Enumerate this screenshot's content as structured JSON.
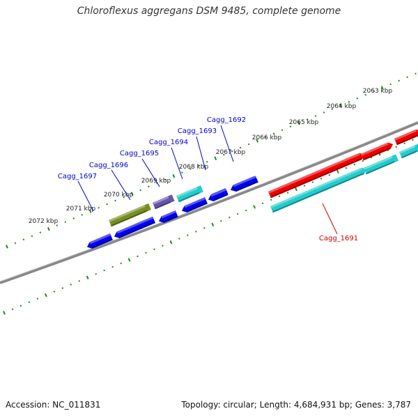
{
  "title": "Chloroflexus aggregans DSM 9485, complete genome",
  "footer": {
    "accession": "Accession: NC_011831",
    "stats": "Topology: circular; Length: 4,684,931 bp; Genes: 3,787"
  },
  "colors": {
    "backbone": "#888888",
    "ticks": "#1a8a1a",
    "tick_label": "#222222",
    "gene_label_minus": "#0000cc",
    "gene_label_plus": "#cc0000"
  },
  "ticks": [
    {
      "label": "2063 kbp"
    },
    {
      "label": "2064 kbp"
    },
    {
      "label": "2065 kbp"
    },
    {
      "label": "2066 kbp"
    },
    {
      "label": "2067 kbp"
    },
    {
      "label": "2068 kbp"
    },
    {
      "label": "2069 kbp"
    },
    {
      "label": "2070 kbp"
    },
    {
      "label": "2071 kbp"
    },
    {
      "label": "2072 kbp"
    }
  ],
  "gene_labels": [
    {
      "label": "Cagg_1692",
      "strand": "minus"
    },
    {
      "label": "Cagg_1693",
      "strand": "minus"
    },
    {
      "label": "Cagg_1694",
      "strand": "minus"
    },
    {
      "label": "Cagg_1695",
      "strand": "minus"
    },
    {
      "label": "Cagg_1696",
      "strand": "minus"
    },
    {
      "label": "Cagg_1697",
      "strand": "minus"
    },
    {
      "label": "Cagg_1691",
      "strand": "plus"
    }
  ],
  "features": [
    {
      "name": "Cagg_1691",
      "track": "plus-gene",
      "color": "#ee0000"
    },
    {
      "name": "Cagg_1691 CDS",
      "track": "plus-cds",
      "color": "#22cccc"
    },
    {
      "name": "gene",
      "track": "plus-gene",
      "color": "#ee0000"
    },
    {
      "name": "gene",
      "track": "plus-gene",
      "color": "#ee0000"
    },
    {
      "name": "CDS",
      "track": "plus-cds",
      "color": "#22cccc"
    },
    {
      "name": "CDS",
      "track": "plus-cds",
      "color": "#22cccc"
    },
    {
      "name": "Cagg_1692",
      "track": "minus-gene",
      "color": "#0000ee"
    },
    {
      "name": "Cagg_1693",
      "track": "minus-gene",
      "color": "#0000ee"
    },
    {
      "name": "Cagg_1694",
      "track": "minus-cds",
      "color": "#22cccc"
    },
    {
      "name": "Cagg_1695",
      "track": "minus-cds",
      "color": "#6655aa"
    },
    {
      "name": "Cagg_1696",
      "track": "minus-cds",
      "color": "#778f22"
    },
    {
      "name": "Cagg_1692 CDS",
      "track": "minus-gene",
      "color": "#0000ee"
    },
    {
      "name": "Cagg_1693 CDS",
      "track": "minus-gene",
      "color": "#0000ee"
    },
    {
      "name": "Cagg_1694 CDS",
      "track": "minus-gene",
      "color": "#0000ee"
    },
    {
      "name": "Cagg_1695 CDS",
      "track": "minus-gene",
      "color": "#0000ee"
    },
    {
      "name": "Cagg_1696 CDS",
      "track": "minus-gene",
      "color": "#0000ee"
    },
    {
      "name": "Cagg_1697 CDS",
      "track": "minus-gene",
      "color": "#0000ee"
    }
  ]
}
